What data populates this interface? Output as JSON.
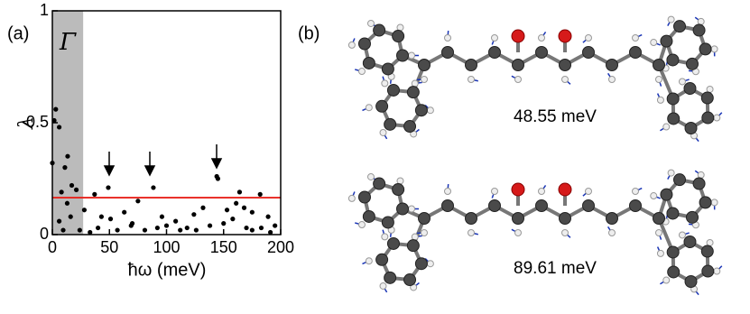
{
  "chart_data": {
    "type": "scatter",
    "panel_label": "(a)",
    "region_label": "Γ",
    "x_label": "ħω (meV)",
    "y_label": "λ",
    "x": [
      1.6,
      3,
      6,
      0,
      11,
      13.4,
      8,
      17,
      21,
      13,
      6,
      16,
      49,
      88.5,
      144,
      37,
      28,
      43,
      51,
      63,
      75,
      69,
      96,
      108,
      124,
      132,
      138,
      153,
      161,
      158,
      168,
      175,
      182,
      189,
      195,
      164,
      33,
      57,
      81,
      112,
      126,
      175,
      191,
      9.5,
      24,
      92,
      183,
      145,
      40,
      70,
      100,
      118,
      150,
      170
    ],
    "values": [
      0.51,
      0.56,
      0.48,
      0.32,
      0.3,
      0.35,
      0.19,
      0.22,
      0.2,
      0.14,
      0.06,
      0.08,
      0.21,
      0.21,
      0.26,
      0.18,
      0.11,
      0.08,
      0.07,
      0.1,
      0.15,
      0.04,
      0.08,
      0.06,
      0.09,
      0.12,
      0.04,
      0.11,
      0.14,
      0.07,
      0.12,
      0.1,
      0.18,
      0.08,
      0.04,
      0.19,
      0.01,
      0.02,
      0.02,
      0.02,
      0.02,
      0.02,
      0.01,
      0.02,
      0.02,
      0.03,
      0.03,
      0.25,
      0.03,
      0.05,
      0.04,
      0.03,
      0.05,
      0.03
    ],
    "color": "#000000",
    "shaded_xrange": [
      0,
      27
    ],
    "shade_color": "#bbbbbb",
    "hline": 0.165,
    "hline_color": "#e8231b",
    "xlim": [
      0,
      200
    ],
    "xticks": [
      0,
      50,
      100,
      150,
      200
    ],
    "ylim": [
      0,
      1
    ],
    "yticks": [
      0,
      0.5,
      1
    ]
  },
  "panel_b": {
    "panel_label": "(b)",
    "mode_labels": [
      "48.55 meV",
      "89.61 meV"
    ]
  }
}
